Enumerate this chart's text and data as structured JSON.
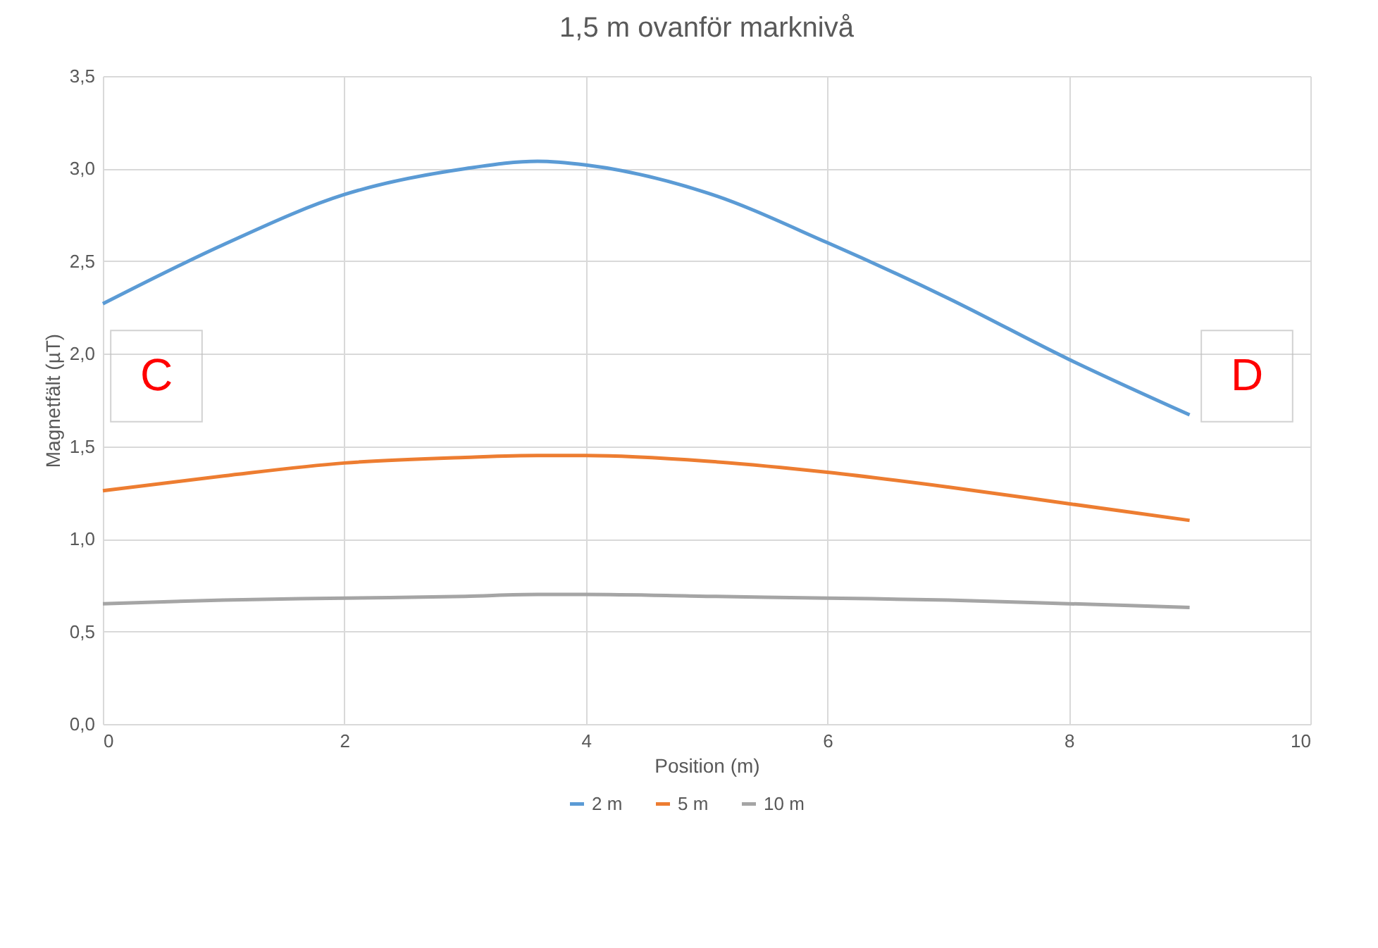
{
  "chart_data": {
    "type": "line",
    "title": "1,5 m ovanför marknivå",
    "xlabel": "Position (m)",
    "ylabel": "Magnetfält (µT)",
    "x": [
      0,
      1,
      2,
      3,
      3.6,
      4,
      5,
      6,
      7,
      8,
      9
    ],
    "series": [
      {
        "name": "2 m",
        "color": "#5b9bd5",
        "values": [
          2.27,
          2.59,
          2.86,
          3.0,
          3.04,
          3.02,
          2.87,
          2.6,
          2.3,
          1.97,
          1.67
        ]
      },
      {
        "name": "5 m",
        "color": "#ed7d31",
        "values": [
          1.26,
          1.34,
          1.41,
          1.44,
          1.45,
          1.45,
          1.42,
          1.36,
          1.28,
          1.19,
          1.1
        ]
      },
      {
        "name": "10 m",
        "color": "#a5a5a5",
        "values": [
          0.65,
          0.67,
          0.68,
          0.69,
          0.7,
          0.7,
          0.69,
          0.68,
          0.67,
          0.65,
          0.63
        ]
      }
    ],
    "xlim": [
      0,
      10
    ],
    "xticks": [
      0,
      2,
      4,
      6,
      8,
      10
    ],
    "ylim": [
      0,
      3.5
    ],
    "yticks": [
      {
        "value": 0,
        "label": "0,0"
      },
      {
        "value": 0.5,
        "label": "0,5"
      },
      {
        "value": 1,
        "label": "1,0"
      },
      {
        "value": 1.5,
        "label": "1,5"
      },
      {
        "value": 2,
        "label": "2,0"
      },
      {
        "value": 2.5,
        "label": "2,5"
      },
      {
        "value": 3,
        "label": "3,0"
      },
      {
        "value": 3.5,
        "label": "3,5"
      }
    ],
    "grid": true,
    "legend": "bottom",
    "marker": "none",
    "line_style": "solid",
    "annotations": [
      "C",
      "D"
    ]
  }
}
